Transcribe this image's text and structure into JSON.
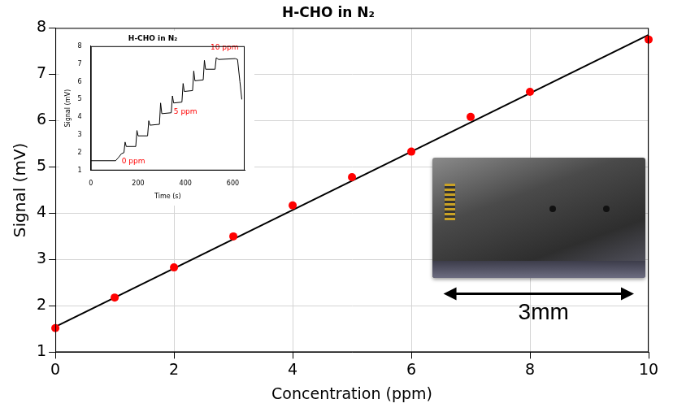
{
  "chart_data": [
    {
      "type": "scatter",
      "title": "H-CHO in N₂",
      "x_label": "Concentration (ppm)",
      "y_label": "Signal (mV)",
      "series": [
        {
          "type": "scatter",
          "color": "#ff0000",
          "marker": "circle",
          "x": [
            0,
            1,
            2,
            3,
            4,
            5,
            6,
            7,
            8,
            10
          ],
          "values": [
            1.52,
            2.18,
            2.83,
            3.5,
            4.17,
            4.78,
            5.33,
            6.08,
            6.62,
            7.75
          ]
        },
        {
          "type": "line",
          "color": "#000000",
          "line_style": "solid",
          "x": [
            0,
            10
          ],
          "values": [
            1.55,
            7.85
          ]
        }
      ],
      "xlim": [
        0,
        10
      ],
      "xticks": [
        0,
        2,
        4,
        6,
        8,
        10
      ],
      "ylim": [
        1,
        8
      ],
      "yticks": [
        1,
        2,
        3,
        4,
        5,
        6,
        7,
        8
      ],
      "grid": true,
      "legend": false,
      "annotations": [
        {
          "text": "3mm"
        }
      ]
    },
    {
      "type": "line",
      "title": "H-CHO in N₂",
      "x_label": "Time (s)",
      "y_label": "Signal (mV)",
      "x": [
        0,
        105,
        115,
        130,
        140,
        145,
        150,
        190,
        195,
        200,
        240,
        245,
        250,
        290,
        295,
        300,
        340,
        345,
        350,
        385,
        390,
        395,
        430,
        435,
        440,
        475,
        480,
        485,
        525,
        530,
        540,
        610,
        620,
        630,
        638
      ],
      "values": [
        1.55,
        1.55,
        1.7,
        1.95,
        2.0,
        2.6,
        2.35,
        2.35,
        3.25,
        2.95,
        2.95,
        3.8,
        3.55,
        3.6,
        4.8,
        4.2,
        4.25,
        5.2,
        4.8,
        4.85,
        5.9,
        5.45,
        5.5,
        6.6,
        6.05,
        6.1,
        7.2,
        6.7,
        6.7,
        7.35,
        7.25,
        7.3,
        7.25,
        6.0,
        5.0
      ],
      "color": "#000000",
      "xlim": [
        0,
        650
      ],
      "xticks": [
        0,
        200,
        400,
        600
      ],
      "ylim": [
        1,
        8
      ],
      "yticks": [
        1,
        2,
        3,
        4,
        5,
        6,
        7,
        8
      ],
      "grid": false,
      "legend": false,
      "annotations": [
        {
          "text": "0 ppm",
          "x": 180,
          "y": 1.5,
          "color": "#ff0000"
        },
        {
          "text": "5 ppm",
          "x": 400,
          "y": 4.3,
          "color": "#ff0000"
        },
        {
          "text": "10 ppm",
          "x": 565,
          "y": 7.9,
          "color": "#ff0000"
        }
      ]
    }
  ]
}
